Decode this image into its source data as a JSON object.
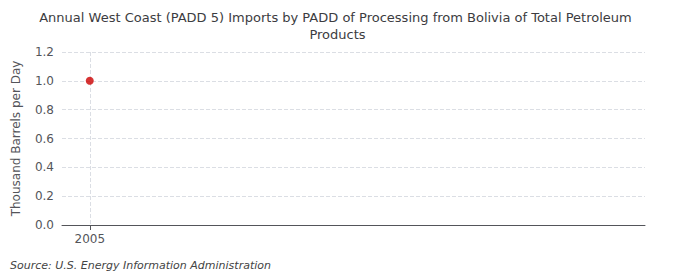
{
  "chart_data": {
    "type": "scatter",
    "title": "Annual West Coast (PADD 5) Imports by PADD of Processing from Bolivia of Total Petroleum Products",
    "ylabel": "Thousand Barrels per Day",
    "annotations": [
      "Source: U.S. Energy Information Administration"
    ],
    "x": [
      2005
    ],
    "values": [
      1.0
    ],
    "color": "#cc0000",
    "marker": "circle",
    "xlim": [
      2004.5,
      2015
    ],
    "xticks": [
      2005
    ],
    "ylim": [
      0.0,
      1.2
    ],
    "yticks": [
      {
        "value": 0.0,
        "label": "0.0"
      },
      0.2,
      0.4,
      0.6,
      0.8,
      {
        "value": 1.0,
        "label": "1.0"
      },
      1.2
    ],
    "grid": true
  }
}
